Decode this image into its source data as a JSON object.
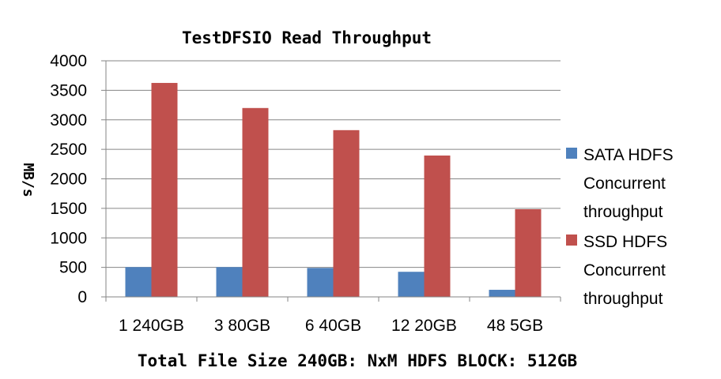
{
  "chart_data": {
    "type": "bar",
    "title": "TestDFSIO Read Throughput",
    "xlabel": "Total File Size 240GB: NxM HDFS BLOCK: 512GB",
    "ylabel": "MB/s",
    "categories": [
      "1 240GB",
      "3 80GB",
      "6 40GB",
      "12 20GB",
      "48 5GB"
    ],
    "ylim": [
      0,
      4000
    ],
    "yticks": [
      0,
      500,
      1000,
      1500,
      2000,
      2500,
      3000,
      3500,
      4000
    ],
    "grid": true,
    "legend_position": "right",
    "series": [
      {
        "name": "SATA HDFS Concurrent throughput",
        "legend_lines": [
          "SATA HDFS",
          "Concurrent",
          "throughput"
        ],
        "color": "#4F81BD",
        "values": [
          505,
          505,
          490,
          425,
          120
        ]
      },
      {
        "name": "SSD HDFS Concurrent throughput",
        "legend_lines": [
          "SSD HDFS",
          "Concurrent",
          "throughput"
        ],
        "color": "#C0504D",
        "values": [
          3625,
          3200,
          2825,
          2395,
          1485
        ]
      }
    ]
  }
}
